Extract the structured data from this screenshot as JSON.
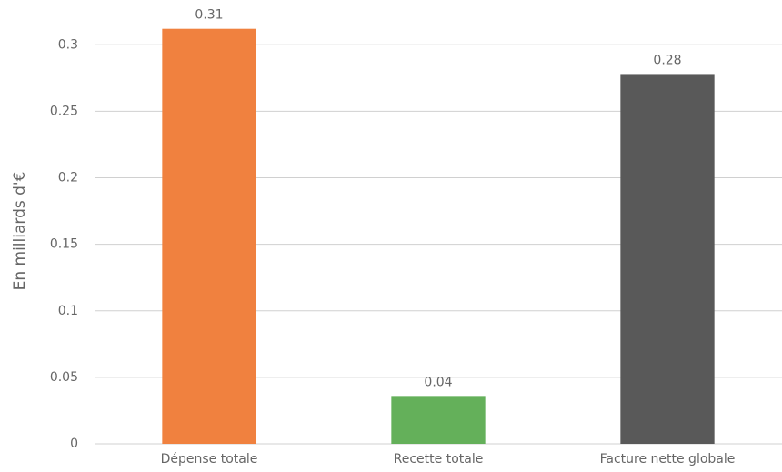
{
  "chart_data": {
    "type": "bar",
    "y_axis_label": "En milliards d'€",
    "categories": [
      "Dépense totale",
      "Recette totale",
      "Facture nette globale"
    ],
    "values": [
      0.312,
      0.036,
      0.278
    ],
    "value_labels": [
      "0.31",
      "0.04",
      "0.28"
    ],
    "colors": [
      "#f0813f",
      "#64b05a",
      "#595959"
    ],
    "ylim": [
      0,
      0.32
    ],
    "yticks": [
      0,
      0.05,
      0.1,
      0.15,
      0.2,
      0.25,
      0.3
    ],
    "grid": true
  }
}
